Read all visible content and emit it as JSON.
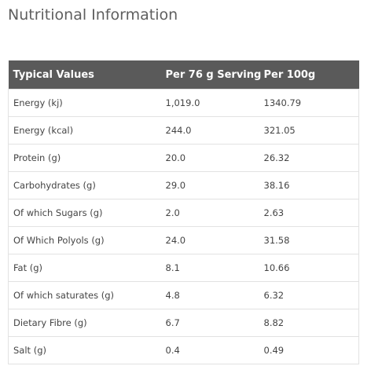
{
  "page": {
    "title": "Nutritional Information"
  },
  "table": {
    "headers": [
      "Typical Values",
      "Per 76 g Serving",
      "Per 100g"
    ],
    "rows": [
      [
        "Energy (kj)",
        "1,019.0",
        "1340.79"
      ],
      [
        "Energy (kcal)",
        "244.0",
        "321.05"
      ],
      [
        "Protein (g)",
        "20.0",
        "26.32"
      ],
      [
        "Carbohydrates (g)",
        "29.0",
        "38.16"
      ],
      [
        "Of which Sugars (g)",
        "2.0",
        "2.63"
      ],
      [
        "Of Which Polyols (g)",
        "24.0",
        "31.58"
      ],
      [
        "Fat (g)",
        "8.1",
        "10.66"
      ],
      [
        "Of which saturates (g)",
        "4.8",
        "6.32"
      ],
      [
        "Dietary Fibre (g)",
        "6.7",
        "8.82"
      ],
      [
        "Salt (g)",
        "0.4",
        "0.49"
      ]
    ]
  },
  "colors": {
    "header_background": "#5a5a5a",
    "header_text": "#ffffff",
    "border": "#e2e2e2",
    "title_text": "#5f5f5f"
  }
}
